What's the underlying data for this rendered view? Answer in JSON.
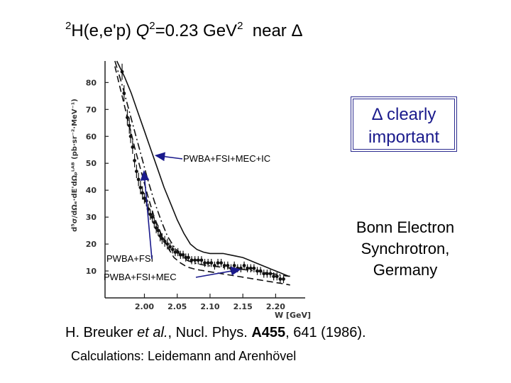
{
  "title": {
    "superscript": "2",
    "reaction": "H(e,e'p)",
    "q2_label": "Q",
    "q2_sup": "2",
    "q2_value": "=0.23 GeV",
    "unit_sup": "2",
    "near": "near Δ"
  },
  "callout": {
    "line1": "Δ clearly",
    "line2": "important"
  },
  "facility": {
    "line1": "Bonn Electron",
    "line2": "Synchrotron,",
    "line3": "Germany"
  },
  "citation": {
    "authors": "H. Breuker",
    "etal": "et al.",
    "journal": ", Nucl. Phys. ",
    "volume": "A455",
    "pages": ", 641 (1986)."
  },
  "calculations": "Calculations:  Leidemann and Arenhövel",
  "chart_data": {
    "type": "scatter",
    "xlabel": "W [GeV]",
    "ylabel": "d⁵σ/dΩₑ·dE'dΩₚᴸᴬᴮ (pb·sr⁻²·MeV⁻¹)",
    "xlim": [
      1.94,
      2.245
    ],
    "ylim": [
      0,
      88
    ],
    "x_ticks": [
      2.0,
      2.05,
      2.1,
      2.15,
      2.2
    ],
    "x_tick_labels": [
      "2.00",
      "2.05",
      "2.10",
      "2.15",
      "2.20"
    ],
    "y_ticks": [
      10,
      20,
      30,
      40,
      50,
      60,
      70,
      80
    ],
    "y_tick_labels": [
      "10",
      "20",
      "30",
      "40",
      "50",
      "60",
      "70",
      "80"
    ],
    "series": [
      {
        "style": "points-with-error-bars",
        "x": [
          1.966,
          1.969,
          1.974,
          1.977,
          1.979,
          1.982,
          1.985,
          1.988,
          1.991,
          1.994,
          1.997,
          2.0,
          2.003,
          2.006,
          2.009,
          2.012,
          2.015,
          2.018,
          2.021,
          2.024,
          2.027,
          2.031,
          2.035,
          2.039,
          2.043,
          2.047,
          2.051,
          2.055,
          2.059,
          2.063,
          2.067,
          2.072,
          2.077,
          2.082,
          2.087,
          2.092,
          2.097,
          2.102,
          2.107,
          2.112,
          2.117,
          2.122,
          2.127,
          2.132,
          2.137,
          2.142,
          2.147,
          2.152,
          2.157,
          2.162,
          2.167,
          2.172,
          2.177,
          2.182,
          2.187,
          2.192,
          2.197,
          2.202,
          2.207,
          2.212
        ],
        "y": [
          84,
          76,
          67,
          64,
          60,
          56,
          51,
          47,
          44,
          41,
          39,
          37,
          36,
          33,
          31,
          30,
          28,
          26,
          25,
          23,
          22,
          21,
          20,
          19,
          18,
          17,
          17,
          16,
          16,
          15,
          15,
          14,
          14,
          14,
          14,
          13,
          13,
          13,
          12,
          13,
          13,
          12,
          12,
          11,
          12,
          11,
          11,
          12,
          11,
          11,
          11,
          10,
          10,
          9,
          9,
          9,
          8,
          8,
          7,
          7
        ],
        "err": [
          3,
          3,
          3,
          3,
          2.5,
          2.5,
          2.5,
          2.5,
          2.5,
          2.5,
          2.5,
          2,
          2,
          2,
          2,
          2,
          2,
          2,
          2,
          2,
          2,
          2,
          2,
          1.5,
          1.5,
          1.5,
          1.5,
          1.5,
          1.5,
          1.5,
          1.5,
          1.5,
          1.5,
          1.5,
          1.5,
          1.5,
          1.5,
          1.5,
          1.5,
          1.5,
          1.5,
          1.5,
          1.5,
          1.5,
          1.5,
          1.5,
          1.5,
          1.5,
          1.5,
          1.5,
          1.5,
          1.5,
          1.5,
          1.5,
          1.5,
          1.5,
          1.5,
          1.5,
          1.5,
          1.5
        ]
      },
      {
        "name": "PWBA+FSI+MEC+IC",
        "style": "solid",
        "x": [
          1.958,
          1.97,
          1.98,
          1.99,
          2.0,
          2.01,
          2.02,
          2.03,
          2.04,
          2.05,
          2.06,
          2.07,
          2.08,
          2.09,
          2.1,
          2.11,
          2.12,
          2.13,
          2.14,
          2.15,
          2.16,
          2.17,
          2.18,
          2.19,
          2.2,
          2.21,
          2.22
        ],
        "y": [
          88,
          82,
          76,
          69,
          62,
          55,
          48,
          41,
          35,
          29,
          24,
          20,
          18,
          17,
          16.5,
          16.5,
          16.5,
          16,
          15.5,
          15,
          14,
          13,
          12,
          11,
          10,
          9,
          8
        ]
      },
      {
        "name": "PWBA+FSI+MEC",
        "style": "dash-dot",
        "x": [
          1.955,
          1.965,
          1.975,
          1.985,
          1.995,
          2.005,
          2.015,
          2.025,
          2.035,
          2.045,
          2.055,
          2.065,
          2.075,
          2.085,
          2.095,
          2.105,
          2.115,
          2.125,
          2.135,
          2.145,
          2.155,
          2.165,
          2.175,
          2.185,
          2.195,
          2.205,
          2.215,
          2.222
        ],
        "y": [
          88,
          80,
          71,
          62,
          53,
          44,
          36,
          29,
          23,
          19,
          16,
          14,
          13,
          12.5,
          12,
          11.8,
          11.5,
          11.2,
          11,
          10.7,
          10.4,
          10.1,
          9.8,
          9.4,
          9,
          8.6,
          8.2,
          8
        ]
      },
      {
        "name": "PWBA+FSI",
        "style": "dashed",
        "x": [
          1.955,
          1.965,
          1.975,
          1.985,
          1.995,
          2.005,
          2.015,
          2.025,
          2.035,
          2.045,
          2.055,
          2.065,
          2.075,
          2.085,
          2.095,
          2.105,
          2.115,
          2.125,
          2.135,
          2.145,
          2.155,
          2.165,
          2.175,
          2.185,
          2.195,
          2.205,
          2.215,
          2.222
        ],
        "y": [
          86,
          76,
          66,
          56,
          47,
          38,
          30,
          24,
          19,
          15,
          13,
          11.5,
          10.8,
          10.3,
          9.9,
          9.5,
          9.1,
          8.7,
          8.3,
          7.9,
          7.5,
          7.1,
          6.7,
          6.3,
          5.9,
          5.5,
          5.1,
          4.8
        ]
      }
    ],
    "annotations": [
      {
        "text": "PWBA+FSI+MEC+IC",
        "target_series": "PWBA+FSI+MEC+IC"
      },
      {
        "text": "PWBA+FSI",
        "target_series": "PWBA+FSI"
      },
      {
        "text": "PWBA+FSI+MEC",
        "target_series": "PWBA+FSI+MEC"
      }
    ]
  }
}
